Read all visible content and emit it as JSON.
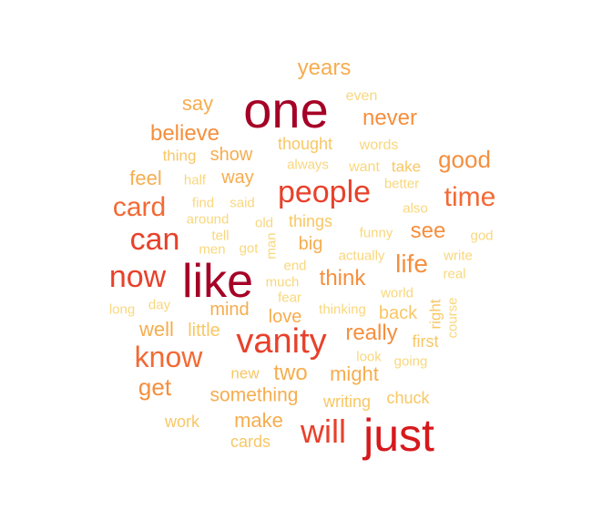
{
  "palette": {
    "c1": "#a50026",
    "c2": "#d7191c",
    "c3": "#e8412b",
    "c4": "#f26a35",
    "c5": "#f58f3e",
    "c6": "#f6ad4f",
    "c7": "#f8c765",
    "c8": "#f9d77c"
  },
  "words": [
    {
      "text": "one",
      "weight": 10,
      "color": "c1"
    },
    {
      "text": "like",
      "weight": 10,
      "color": "c1"
    },
    {
      "text": "just",
      "weight": 9,
      "color": "c2"
    },
    {
      "text": "vanity",
      "weight": 8,
      "color": "c3"
    },
    {
      "text": "people",
      "weight": 7,
      "color": "c3"
    },
    {
      "text": "will",
      "weight": 7,
      "color": "c3"
    },
    {
      "text": "now",
      "weight": 7,
      "color": "c3"
    },
    {
      "text": "can",
      "weight": 7,
      "color": "c3"
    },
    {
      "text": "know",
      "weight": 6,
      "color": "c4"
    },
    {
      "text": "time",
      "weight": 6,
      "color": "c4"
    },
    {
      "text": "card",
      "weight": 6,
      "color": "c4"
    },
    {
      "text": "life",
      "weight": 5,
      "color": "c5"
    },
    {
      "text": "good",
      "weight": 5,
      "color": "c5"
    },
    {
      "text": "never",
      "weight": 5,
      "color": "c5"
    },
    {
      "text": "believe",
      "weight": 5,
      "color": "c5"
    },
    {
      "text": "think",
      "weight": 5,
      "color": "c5"
    },
    {
      "text": "really",
      "weight": 5,
      "color": "c5"
    },
    {
      "text": "get",
      "weight": 5,
      "color": "c5"
    },
    {
      "text": "see",
      "weight": 5,
      "color": "c5"
    },
    {
      "text": "years",
      "weight": 5,
      "color": "c6"
    },
    {
      "text": "two",
      "weight": 5,
      "color": "c6"
    },
    {
      "text": "might",
      "weight": 4,
      "color": "c6"
    },
    {
      "text": "make",
      "weight": 4,
      "color": "c6"
    },
    {
      "text": "well",
      "weight": 4,
      "color": "c6"
    },
    {
      "text": "feel",
      "weight": 4,
      "color": "c6"
    },
    {
      "text": "something",
      "weight": 4,
      "color": "c6"
    },
    {
      "text": "show",
      "weight": 4,
      "color": "c6"
    },
    {
      "text": "say",
      "weight": 4,
      "color": "c6"
    },
    {
      "text": "way",
      "weight": 4,
      "color": "c6"
    },
    {
      "text": "mind",
      "weight": 4,
      "color": "c6"
    },
    {
      "text": "big",
      "weight": 4,
      "color": "c6"
    },
    {
      "text": "love",
      "weight": 4,
      "color": "c6"
    },
    {
      "text": "little",
      "weight": 4,
      "color": "c7"
    },
    {
      "text": "back",
      "weight": 4,
      "color": "c7"
    },
    {
      "text": "thought",
      "weight": 3,
      "color": "c7"
    },
    {
      "text": "things",
      "weight": 3,
      "color": "c7"
    },
    {
      "text": "work",
      "weight": 3,
      "color": "c7"
    },
    {
      "text": "first",
      "weight": 3,
      "color": "c7"
    },
    {
      "text": "chuck",
      "weight": 3,
      "color": "c7"
    },
    {
      "text": "writing",
      "weight": 3,
      "color": "c7"
    },
    {
      "text": "cards",
      "weight": 3,
      "color": "c7"
    },
    {
      "text": "new",
      "weight": 3,
      "color": "c7"
    },
    {
      "text": "thing",
      "weight": 3,
      "color": "c7"
    },
    {
      "text": "take",
      "weight": 3,
      "color": "c7"
    },
    {
      "text": "right",
      "weight": 3,
      "color": "c7"
    },
    {
      "text": "words",
      "weight": 3,
      "color": "c8"
    },
    {
      "text": "even",
      "weight": 3,
      "color": "c8"
    },
    {
      "text": "want",
      "weight": 3,
      "color": "c8"
    },
    {
      "text": "always",
      "weight": 3,
      "color": "c8"
    },
    {
      "text": "half",
      "weight": 3,
      "color": "c8"
    },
    {
      "text": "better",
      "weight": 3,
      "color": "c8"
    },
    {
      "text": "find",
      "weight": 3,
      "color": "c8"
    },
    {
      "text": "said",
      "weight": 3,
      "color": "c8"
    },
    {
      "text": "also",
      "weight": 3,
      "color": "c8"
    },
    {
      "text": "around",
      "weight": 3,
      "color": "c8"
    },
    {
      "text": "old",
      "weight": 3,
      "color": "c8"
    },
    {
      "text": "funny",
      "weight": 3,
      "color": "c8"
    },
    {
      "text": "god",
      "weight": 3,
      "color": "c8"
    },
    {
      "text": "tell",
      "weight": 3,
      "color": "c8"
    },
    {
      "text": "man",
      "weight": 3,
      "color": "c8"
    },
    {
      "text": "men",
      "weight": 3,
      "color": "c8"
    },
    {
      "text": "got",
      "weight": 3,
      "color": "c8"
    },
    {
      "text": "write",
      "weight": 3,
      "color": "c8"
    },
    {
      "text": "actually",
      "weight": 3,
      "color": "c8"
    },
    {
      "text": "end",
      "weight": 3,
      "color": "c8"
    },
    {
      "text": "real",
      "weight": 3,
      "color": "c8"
    },
    {
      "text": "much",
      "weight": 3,
      "color": "c8"
    },
    {
      "text": "long",
      "weight": 3,
      "color": "c8"
    },
    {
      "text": "day",
      "weight": 3,
      "color": "c8"
    },
    {
      "text": "fear",
      "weight": 3,
      "color": "c8"
    },
    {
      "text": "thinking",
      "weight": 3,
      "color": "c8"
    },
    {
      "text": "world",
      "weight": 3,
      "color": "c8"
    },
    {
      "text": "course",
      "weight": 3,
      "color": "c8"
    },
    {
      "text": "look",
      "weight": 3,
      "color": "c8"
    },
    {
      "text": "going",
      "weight": 3,
      "color": "c8"
    }
  ]
}
